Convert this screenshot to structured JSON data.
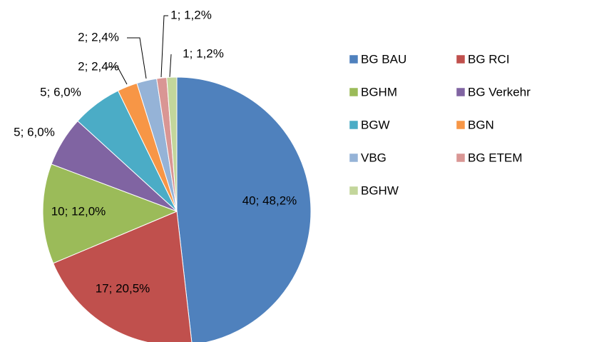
{
  "chart_data": {
    "type": "pie",
    "categories": [
      "BG BAU",
      "BG RCI",
      "BGHM",
      "BG Verkehr",
      "BGW",
      "BGN",
      "VBG",
      "BG ETEM",
      "BGHW"
    ],
    "values": [
      40,
      17,
      10,
      5,
      5,
      2,
      2,
      1,
      1
    ],
    "value_labels": [
      "40; 48,2%",
      "17; 20,5%",
      "10; 12,0%",
      "5; 6,0%",
      "5; 6,0%",
      "2; 2,4%",
      "2; 2,4%",
      "1; 1,2%",
      "1; 1,2%"
    ],
    "colors": [
      "#4F81BD",
      "#C0504D",
      "#9BBB59",
      "#8064A2",
      "#4BACC6",
      "#F79646",
      "#95B3D7",
      "#D99694",
      "#C3D69B"
    ],
    "legend": "right"
  }
}
